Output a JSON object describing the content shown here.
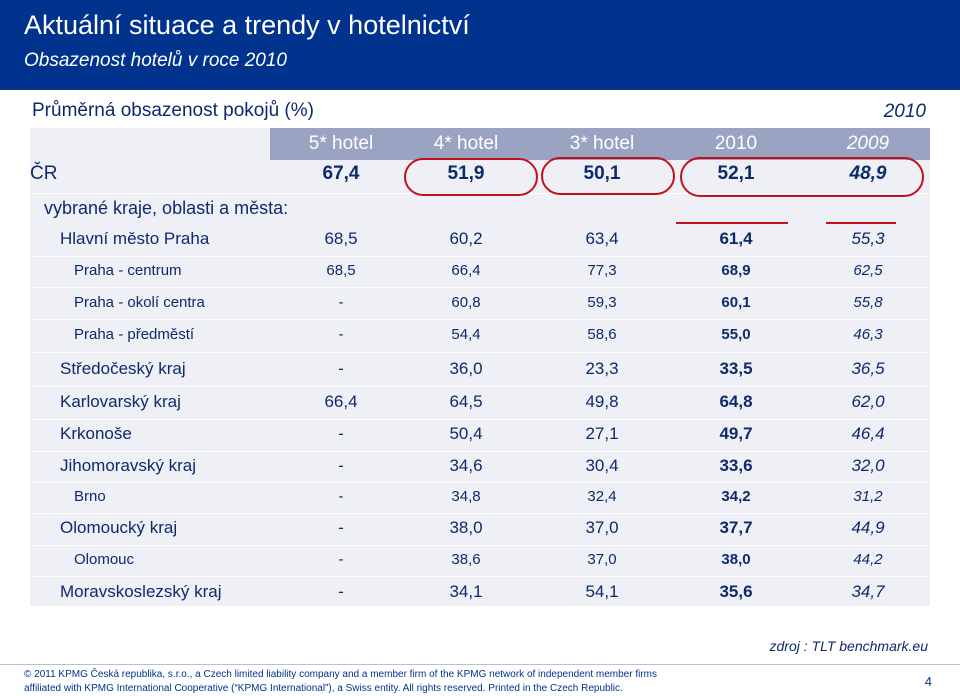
{
  "header": {
    "title": "Aktuální situace a trendy v hotelnictví",
    "subtitle": "Obsazenost hotelů v roce 2010"
  },
  "section": {
    "title": "Průměrná obsazenost pokojů (%)",
    "year": "2010"
  },
  "table": {
    "columns": [
      "5* hotel",
      "4* hotel",
      "3* hotel",
      "2010",
      "2009"
    ],
    "cr_row": {
      "label": "ČR",
      "values": [
        "67,4",
        "51,9",
        "50,1",
        "52,1",
        "48,9"
      ]
    },
    "group_label": "vybrané kraje, oblasti a města:",
    "rows": [
      {
        "label": "Hlavní město Praha",
        "values": [
          "68,5",
          "60,2",
          "63,4",
          "61,4",
          "55,3"
        ]
      },
      {
        "label": "Praha - centrum",
        "values": [
          "68,5",
          "66,4",
          "77,3",
          "68,9",
          "62,5"
        ]
      },
      {
        "label": "Praha - okolí centra",
        "values": [
          "-",
          "60,8",
          "59,3",
          "60,1",
          "55,8"
        ]
      },
      {
        "label": "Praha - předměstí",
        "values": [
          "-",
          "54,4",
          "58,6",
          "55,0",
          "46,3"
        ]
      },
      {
        "label": "Středočeský kraj",
        "values": [
          "-",
          "36,0",
          "23,3",
          "33,5",
          "36,5"
        ]
      },
      {
        "label": "Karlovarský kraj",
        "values": [
          "66,4",
          "64,5",
          "49,8",
          "64,8",
          "62,0"
        ]
      },
      {
        "label": "Krkonoše",
        "values": [
          "-",
          "50,4",
          "27,1",
          "49,7",
          "46,4"
        ]
      },
      {
        "label": "Jihomoravský kraj",
        "values": [
          "-",
          "34,6",
          "30,4",
          "33,6",
          "32,0"
        ]
      },
      {
        "label": "Brno",
        "values": [
          "-",
          "34,8",
          "32,4",
          "34,2",
          "31,2"
        ]
      },
      {
        "label": "Olomoucký kraj",
        "values": [
          "-",
          "38,0",
          "37,0",
          "37,7",
          "44,9"
        ]
      },
      {
        "label": "Olomouc",
        "values": [
          "-",
          "38,6",
          "37,0",
          "38,0",
          "44,2"
        ]
      },
      {
        "label": "Moravskoslezský kraj",
        "values": [
          "-",
          "34,1",
          "54,1",
          "35,6",
          "34,7"
        ]
      }
    ]
  },
  "source": "zdroj : TLT benchmark.eu",
  "footer": {
    "line1": "© 2011 KPMG Česká republika, s.r.o., a Czech limited liability company and a member firm of the KPMG network of independent member firms",
    "line2": "affiliated with KPMG International Cooperative (“KPMG International”), a Swiss entity. All rights reserved. Printed in the Czech Republic.",
    "page": "4"
  },
  "colors": {
    "brand": "#00338d",
    "accent": "#c4101a",
    "text": "#0d2a6b"
  }
}
